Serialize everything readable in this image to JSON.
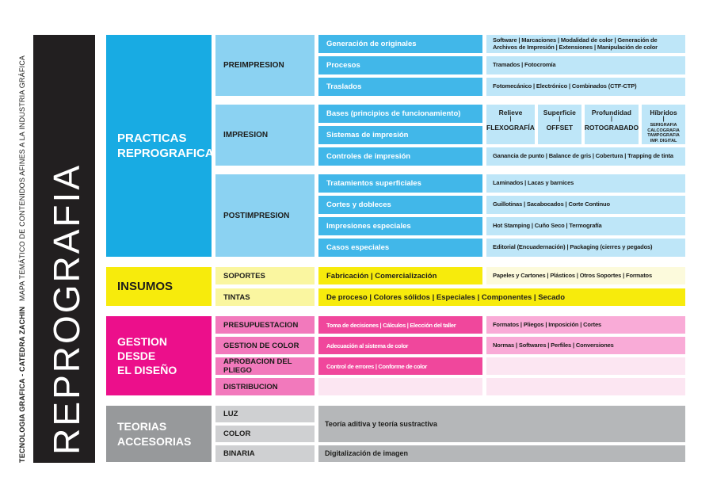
{
  "sidebar": {
    "credit_bold": "TECNOLOGIA GRAFICA - CATEDRA ZACHIN",
    "credit_regular": "MAPA TEMÁTICO DE CONTENIDOS AFINES A LA INDUSTRIA GRÁFICA",
    "title": "REPROGRAFIA",
    "bar_color": "#221F20"
  },
  "colors": {
    "cyan_category": "#18ABE3",
    "cyan_group": "#8BD2F2",
    "cyan_topic": "#41B7E9",
    "cyan_detail": "#BEE6F8",
    "yellow_bright": "#F7EB0C",
    "yellow_light": "#FAF6A0",
    "yellow_pale": "#FCFADC",
    "magenta_category": "#EC0F8B",
    "pink_label": "#F279BC",
    "pink_topic": "#F0479C",
    "pink_detail": "#F9ABD7",
    "pink_empty": "#FCE6F2",
    "gray_category": "#97999B",
    "gray_label": "#CFD0D2",
    "gray_detail": "#B5B7B9"
  },
  "sections": {
    "practicas": {
      "title": "PRACTICAS\nREPROGRAFICAS",
      "groups": {
        "preimpresion": {
          "label": "PREIMPRESION",
          "rows": [
            {
              "topic": "Generación de originales",
              "detail": "Software | Marcaciones | Modalidad de color | Generación de Archivos de Impresión | Extensiones | Manipulación de color"
            },
            {
              "topic": "Procesos",
              "detail": "Tramados | Fotocromía"
            },
            {
              "topic": "Traslados",
              "detail": "Fotomecánico | Electrónico | Combinados (CTF-CTP)"
            }
          ]
        },
        "impresion": {
          "label": "IMPRESION",
          "topics": [
            "Bases (principios de funcionamiento)",
            "Sistemas de impresión",
            "Controles de impresión"
          ],
          "systems": [
            {
              "category": "Relieve",
              "divider": "|",
              "name": "FLEXOGRAFÍA"
            },
            {
              "category": "Superficie",
              "divider": "|",
              "name": "OFFSET"
            },
            {
              "category": "Profundidad",
              "divider": "|",
              "name": "ROTOGRABADO"
            },
            {
              "category": "Híbridos",
              "divider": "|",
              "name": "SERIGRAFIA\nCALCOGRAFIA\nTAMPOGRAFIA\nIMP. DIGITAL"
            }
          ],
          "controls_detail": "Ganancia de punto | Balance de gris | Cobertura | Trapping de tinta"
        },
        "postimpresion": {
          "label": "POSTIMPRESION",
          "rows": [
            {
              "topic": "Tratamientos superficiales",
              "detail": "Laminados | Lacas y barnices"
            },
            {
              "topic": "Cortes y dobleces",
              "detail": "Guillotinas | Sacabocados | Corte Continuo"
            },
            {
              "topic": "Impresiones especiales",
              "detail": "Hot Stamping | Cuño Seco | Termografía"
            },
            {
              "topic": "Casos especiales",
              "detail": "Editorial (Encuadernación) | Packaging (cierres y pegados)"
            }
          ]
        }
      }
    },
    "insumos": {
      "title": "INSUMOS",
      "soportes": {
        "label": "SOPORTES",
        "topic": "Fabricación | Comercialización",
        "detail": "Papeles y Cartones | Plásticos | Otros Soportes | Formatos"
      },
      "tintas": {
        "label": "TINTAS",
        "topic": "De proceso | Colores sólidos | Especiales | Componentes | Secado"
      }
    },
    "gestion": {
      "title": "GESTION\nDESDE\nEL DISEÑO",
      "rows": [
        {
          "label": "PRESUPUESTACION",
          "topic": "Toma de decisiones | Cálculos | Elección del taller",
          "detail": "Formatos | Pliegos | Imposición | Cortes"
        },
        {
          "label": "GESTION DE COLOR",
          "topic": "Adecuación al sistema de color",
          "detail": "Normas | Softwares | Perfiles | Conversiones"
        },
        {
          "label": "APROBACION DEL PLIEGO",
          "topic": "Control de errores | Conforme de color",
          "detail": ""
        },
        {
          "label": "DISTRIBUCION",
          "topic": "",
          "detail": ""
        }
      ]
    },
    "teorias": {
      "title": "TEORIAS\nACCESORIAS",
      "labels": [
        "LUZ",
        "COLOR",
        "BINARIA"
      ],
      "merged_detail": "Teoría aditiva y teoría sustractiva",
      "binaria_detail": "Digitalización de imagen"
    }
  }
}
